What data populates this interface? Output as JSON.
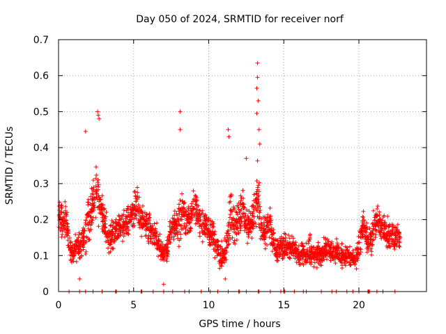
{
  "chart_data": {
    "type": "scatter",
    "title": "Day 050 of 2024, SRMTID for receiver norf",
    "xlabel": "GPS time / hours",
    "ylabel": "SRMTID / TECUs",
    "xlim": [
      0,
      24.5
    ],
    "ylim": [
      0,
      0.7
    ],
    "x_ticks": [
      0,
      5,
      10,
      15,
      20
    ],
    "y_ticks": [
      0,
      0.1,
      0.2,
      0.3,
      0.4,
      0.5,
      0.6,
      0.7
    ],
    "x_tick_labels": [
      "0",
      "5",
      "10",
      "15",
      "20"
    ],
    "y_tick_labels": [
      "0",
      "0.1",
      "0.2",
      "0.3",
      "0.4",
      "0.5",
      "0.6",
      "0.7"
    ],
    "grid": true,
    "marker": "+",
    "color": "#ff0000",
    "series": [
      {
        "name": "SRMTID",
        "description": "Envelope of scattered SRMTID samples (approx. median and spread per time bin)",
        "x": [
          0.0,
          0.25,
          0.5,
          0.75,
          1.0,
          1.25,
          1.5,
          1.75,
          2.0,
          2.25,
          2.5,
          2.75,
          3.0,
          3.25,
          3.5,
          3.75,
          4.0,
          4.25,
          4.5,
          4.75,
          5.0,
          5.25,
          5.5,
          5.75,
          6.0,
          6.25,
          6.5,
          6.75,
          7.0,
          7.25,
          7.5,
          7.75,
          8.0,
          8.25,
          8.5,
          8.75,
          9.0,
          9.25,
          9.5,
          9.75,
          10.0,
          10.25,
          10.5,
          10.75,
          11.0,
          11.25,
          11.5,
          11.75,
          12.0,
          12.25,
          12.5,
          12.75,
          13.0,
          13.25,
          13.5,
          13.75,
          14.0,
          14.25,
          14.5,
          14.75,
          15.0,
          15.25,
          15.5,
          15.75,
          16.0,
          16.25,
          16.5,
          16.75,
          17.0,
          17.25,
          17.5,
          17.75,
          18.0,
          18.25,
          18.5,
          18.75,
          19.0,
          19.25,
          19.5,
          19.75,
          20.0,
          20.25,
          20.5,
          20.75,
          21.0,
          21.25,
          21.5,
          21.75,
          22.0,
          22.25,
          22.5,
          22.75
        ],
        "median": [
          0.22,
          0.19,
          0.2,
          0.12,
          0.11,
          0.13,
          0.12,
          0.15,
          0.2,
          0.24,
          0.28,
          0.24,
          0.2,
          0.15,
          0.15,
          0.17,
          0.18,
          0.18,
          0.19,
          0.2,
          0.22,
          0.24,
          0.2,
          0.19,
          0.18,
          0.17,
          0.15,
          0.12,
          0.1,
          0.12,
          0.17,
          0.18,
          0.2,
          0.22,
          0.2,
          0.2,
          0.25,
          0.22,
          0.19,
          0.18,
          0.17,
          0.15,
          0.13,
          0.1,
          0.1,
          0.15,
          0.22,
          0.18,
          0.2,
          0.24,
          0.19,
          0.18,
          0.21,
          0.28,
          0.17,
          0.16,
          0.2,
          0.15,
          0.11,
          0.12,
          0.13,
          0.13,
          0.12,
          0.11,
          0.1,
          0.11,
          0.1,
          0.12,
          0.1,
          0.1,
          0.11,
          0.12,
          0.12,
          0.11,
          0.11,
          0.1,
          0.1,
          0.1,
          0.09,
          0.09,
          0.12,
          0.18,
          0.15,
          0.14,
          0.17,
          0.2,
          0.18,
          0.17,
          0.16,
          0.16,
          0.15,
          0.15
        ],
        "spread": [
          0.08,
          0.06,
          0.05,
          0.05,
          0.04,
          0.05,
          0.05,
          0.07,
          0.08,
          0.08,
          0.1,
          0.08,
          0.07,
          0.05,
          0.05,
          0.05,
          0.05,
          0.05,
          0.05,
          0.05,
          0.06,
          0.06,
          0.06,
          0.06,
          0.05,
          0.05,
          0.05,
          0.05,
          0.04,
          0.05,
          0.06,
          0.06,
          0.09,
          0.07,
          0.06,
          0.06,
          0.07,
          0.06,
          0.06,
          0.05,
          0.05,
          0.05,
          0.05,
          0.05,
          0.04,
          0.06,
          0.09,
          0.06,
          0.06,
          0.07,
          0.06,
          0.05,
          0.07,
          0.1,
          0.06,
          0.06,
          0.06,
          0.05,
          0.04,
          0.04,
          0.05,
          0.05,
          0.04,
          0.04,
          0.03,
          0.04,
          0.04,
          0.05,
          0.04,
          0.04,
          0.04,
          0.04,
          0.04,
          0.04,
          0.04,
          0.04,
          0.04,
          0.04,
          0.03,
          0.03,
          0.05,
          0.06,
          0.05,
          0.05,
          0.06,
          0.06,
          0.05,
          0.05,
          0.05,
          0.05,
          0.05,
          0.04
        ]
      }
    ],
    "notable_points": [
      {
        "x": 13.25,
        "y": 0.635
      },
      {
        "x": 13.25,
        "y": 0.595
      },
      {
        "x": 13.2,
        "y": 0.565
      },
      {
        "x": 13.3,
        "y": 0.53
      },
      {
        "x": 13.2,
        "y": 0.495
      },
      {
        "x": 2.6,
        "y": 0.5
      },
      {
        "x": 2.65,
        "y": 0.49
      },
      {
        "x": 2.7,
        "y": 0.48
      },
      {
        "x": 8.1,
        "y": 0.5
      },
      {
        "x": 8.1,
        "y": 0.45
      },
      {
        "x": 11.3,
        "y": 0.45
      },
      {
        "x": 11.35,
        "y": 0.43
      },
      {
        "x": 13.35,
        "y": 0.45
      },
      {
        "x": 13.4,
        "y": 0.41
      },
      {
        "x": 1.8,
        "y": 0.445
      },
      {
        "x": 12.5,
        "y": 0.37
      },
      {
        "x": 7.0,
        "y": 0.02
      },
      {
        "x": 1.4,
        "y": 0.035
      },
      {
        "x": 11.1,
        "y": 0.035
      }
    ],
    "baseline_x": [
      0.7,
      1.4,
      1.8,
      2.3,
      2.9,
      3.8,
      3.85,
      4.7,
      5.5,
      5.55,
      6.3,
      7.0,
      7.6,
      8.4,
      8.7,
      9.5,
      10.1,
      10.6,
      11.3,
      12.0,
      12.05,
      12.5,
      13.3,
      13.35,
      14.1,
      14.8,
      15.0,
      15.05,
      15.7,
      16.3,
      16.5,
      17.5,
      18.2,
      18.5,
      19.2,
      19.6,
      20.0,
      20.6,
      20.65,
      20.7,
      21.2,
      21.6,
      22.4
    ]
  }
}
